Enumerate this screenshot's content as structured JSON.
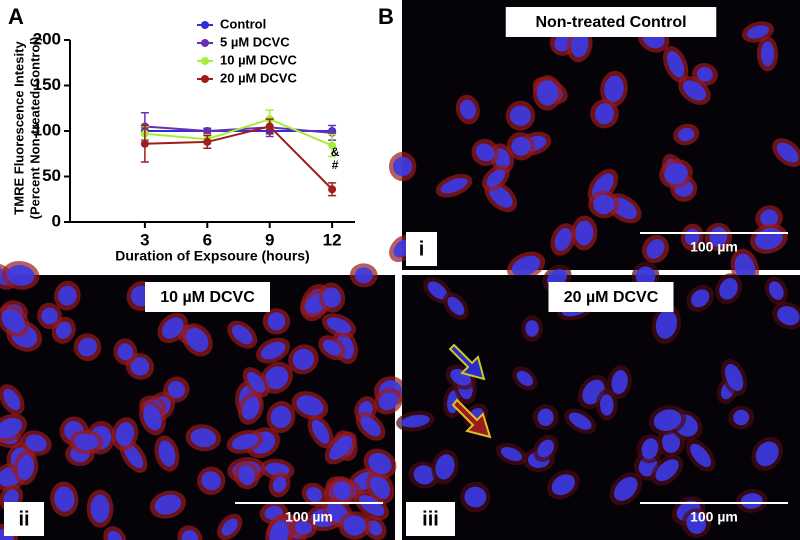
{
  "panel_labels": [
    "A",
    "B"
  ],
  "chart_data": {
    "type": "line",
    "ylabel": [
      "TMRE Fluorescence Intesity",
      "(Percent Non-treated Control)"
    ],
    "xlabel": "Duration of Expsoure (hours)",
    "x": [
      3,
      6,
      9,
      12
    ],
    "xlim": [
      -0.6,
      13.1
    ],
    "xticks": [
      3,
      6,
      9,
      12
    ],
    "ylim": [
      0,
      200
    ],
    "yticks": [
      0,
      50,
      100,
      150,
      200
    ],
    "series": [
      {
        "name": "Control",
        "color": "#2f2fd8",
        "values": [
          100,
          100,
          100,
          100
        ],
        "errors": [
          0,
          0,
          0,
          0
        ]
      },
      {
        "name": "5 µM DCVC",
        "color": "#6a2fb0",
        "values": [
          105,
          100,
          104,
          98
        ],
        "errors": [
          15,
          3,
          10,
          8
        ]
      },
      {
        "name": "10 µM DCVC",
        "color": "#a6ee3a",
        "values": [
          97,
          91,
          113,
          84
        ],
        "errors": [
          8,
          5,
          10,
          12
        ]
      },
      {
        "name": "20 µM DCVC",
        "color": "#a01d1d",
        "values": [
          86,
          88,
          105,
          36
        ],
        "errors": [
          20,
          7,
          8,
          7
        ]
      }
    ],
    "annotations": [
      "&",
      "#"
    ]
  },
  "images": [
    {
      "title": "Non-treated Control",
      "label": "i",
      "scale_bar": "100 µm"
    },
    {
      "title": "10 µM DCVC",
      "label": "ii",
      "scale_bar": "100 µm"
    },
    {
      "title": "20 µM DCVC",
      "label": "iii",
      "scale_bar": "100 µm"
    }
  ]
}
